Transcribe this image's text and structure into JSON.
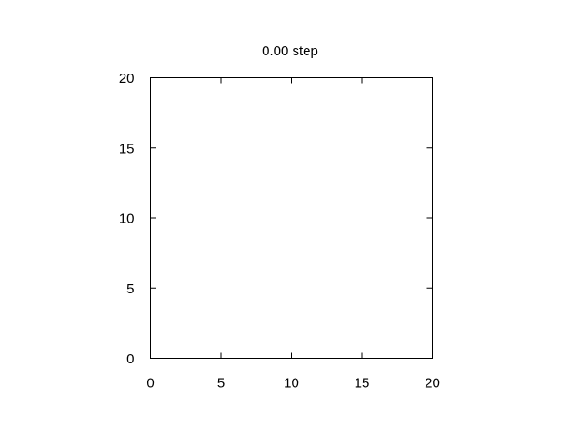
{
  "chart_data": {
    "type": "scatter",
    "title": "0.00 step",
    "xlabel": "",
    "ylabel": "",
    "xlim": [
      0,
      20
    ],
    "ylim": [
      0,
      20
    ],
    "xticks": [
      0,
      5,
      10,
      15,
      20
    ],
    "yticks": [
      0,
      5,
      10,
      15,
      20
    ],
    "xtick_labels": [
      "0",
      "5",
      "10",
      "15",
      "20"
    ],
    "ytick_labels": [
      "0",
      "5",
      "10",
      "15",
      "20"
    ],
    "grid": false,
    "series": [
      {
        "x": [],
        "y": []
      }
    ]
  },
  "colors": {
    "axis": "#000000",
    "background": "#ffffff"
  }
}
